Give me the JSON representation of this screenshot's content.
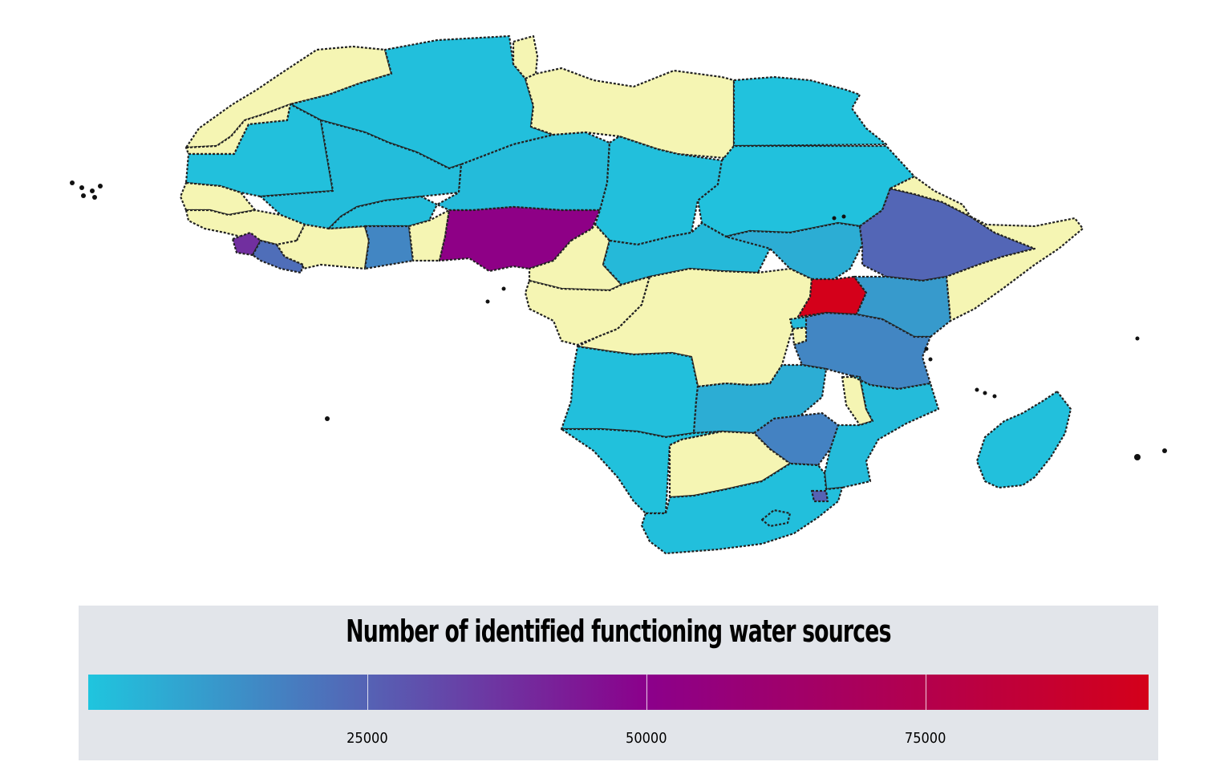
{
  "legend": {
    "title": "Number of identified functioning water sources",
    "min": 0,
    "max": 95000,
    "ticks": [
      {
        "value": 25000,
        "label": "25000"
      },
      {
        "value": 50000,
        "label": "50000"
      },
      {
        "value": 75000,
        "label": "75000"
      }
    ],
    "colors": {
      "low": "#1fc5de",
      "mid": "#8b008b",
      "high": "#d4001a",
      "no_data": "#f5f5b3",
      "panel": "#e2e5ea"
    }
  },
  "countries": [
    {
      "name": "Morocco",
      "value": null
    },
    {
      "name": "Western Sahara",
      "value": null
    },
    {
      "name": "Algeria",
      "value": 1500
    },
    {
      "name": "Tunisia",
      "value": null
    },
    {
      "name": "Libya",
      "value": null
    },
    {
      "name": "Egypt",
      "value": 800
    },
    {
      "name": "Mauritania",
      "value": 1200
    },
    {
      "name": "Mali",
      "value": 2000
    },
    {
      "name": "Niger",
      "value": 2500
    },
    {
      "name": "Chad",
      "value": 1500
    },
    {
      "name": "Sudan",
      "value": 900
    },
    {
      "name": "Senegal",
      "value": null
    },
    {
      "name": "Gambia",
      "value": null
    },
    {
      "name": "Guinea-Bissau",
      "value": null
    },
    {
      "name": "Guinea",
      "value": null
    },
    {
      "name": "Sierra Leone",
      "value": 38000
    },
    {
      "name": "Liberia",
      "value": 22000
    },
    {
      "name": "Cote d'Ivoire",
      "value": null
    },
    {
      "name": "Burkina Faso",
      "value": 1800
    },
    {
      "name": "Ghana",
      "value": 16000
    },
    {
      "name": "Togo",
      "value": null
    },
    {
      "name": "Benin",
      "value": null
    },
    {
      "name": "Nigeria",
      "value": 52000
    },
    {
      "name": "Cameroon",
      "value": null
    },
    {
      "name": "Central African Republic",
      "value": 3000
    },
    {
      "name": "South Sudan",
      "value": 6000
    },
    {
      "name": "Ethiopia",
      "value": 24000
    },
    {
      "name": "Eritrea",
      "value": null
    },
    {
      "name": "Djibouti",
      "value": null
    },
    {
      "name": "Somalia",
      "value": null
    },
    {
      "name": "Equatorial Guinea",
      "value": null
    },
    {
      "name": "Gabon",
      "value": null
    },
    {
      "name": "Congo",
      "value": null
    },
    {
      "name": "DR Congo",
      "value": null
    },
    {
      "name": "Uganda",
      "value": 95000
    },
    {
      "name": "Kenya",
      "value": 11000
    },
    {
      "name": "Rwanda",
      "value": 3000
    },
    {
      "name": "Burundi",
      "value": null
    },
    {
      "name": "Tanzania",
      "value": 16000
    },
    {
      "name": "Angola",
      "value": 1500
    },
    {
      "name": "Zambia",
      "value": 6000
    },
    {
      "name": "Malawi",
      "value": null
    },
    {
      "name": "Mozambique",
      "value": 2500
    },
    {
      "name": "Zimbabwe",
      "value": 17000
    },
    {
      "name": "Namibia",
      "value": 1000
    },
    {
      "name": "Botswana",
      "value": null
    },
    {
      "name": "South Africa",
      "value": 1500
    },
    {
      "name": "Lesotho",
      "value": 1500
    },
    {
      "name": "Eswatini",
      "value": 25000
    },
    {
      "name": "Madagascar",
      "value": 1200
    }
  ]
}
